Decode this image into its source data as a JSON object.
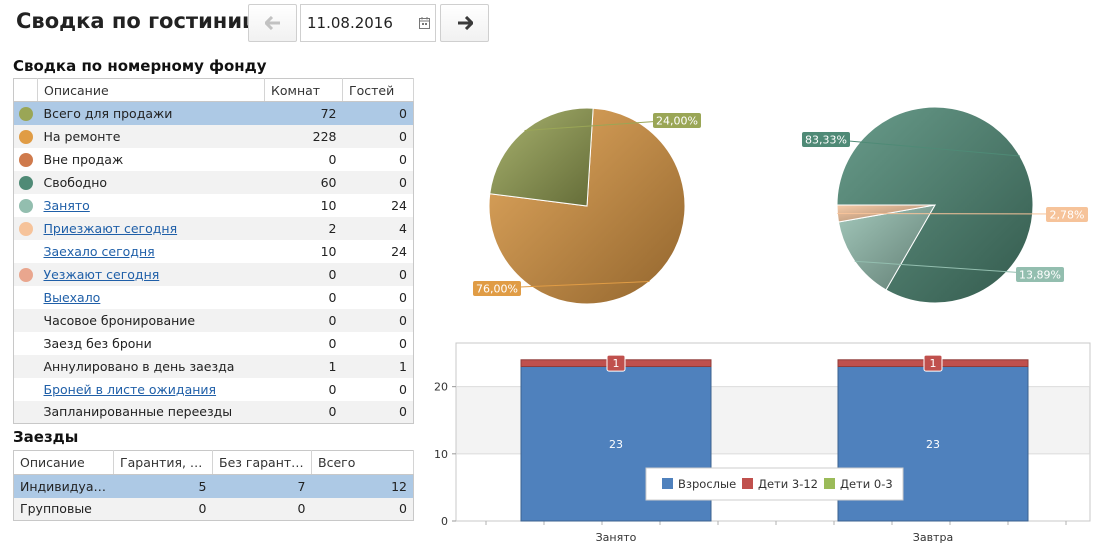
{
  "header": {
    "title": "Сводка по гостинице",
    "date_value": "11.08.2016",
    "prev_icon": "arrow-left-icon",
    "next_icon": "arrow-right-icon",
    "calendar_icon": "calendar-icon"
  },
  "rooms": {
    "title": "Сводка по номерному фонду",
    "columns": [
      "Описание",
      "Комнат",
      "Гостей"
    ],
    "rows": [
      {
        "label": "Всего для продажи",
        "rooms": "72",
        "guests": "0",
        "color": "#9aa656",
        "link": false
      },
      {
        "label": "На ремонте",
        "rooms": "228",
        "guests": "0",
        "color": "#e09c45",
        "link": false
      },
      {
        "label": "Вне продаж",
        "rooms": "0",
        "guests": "0",
        "color": "#cf7a4c",
        "link": false
      },
      {
        "label": "Свободно",
        "rooms": "60",
        "guests": "0",
        "color": "#4f8a76",
        "link": false
      },
      {
        "label": "Занято",
        "rooms": "10",
        "guests": "24",
        "color": "#93beaf",
        "link": true
      },
      {
        "label": "Приезжают сегодня",
        "rooms": "2",
        "guests": "4",
        "color": "#f6c39a",
        "link": true
      },
      {
        "label": "Заехало сегодня",
        "rooms": "10",
        "guests": "24",
        "color": "",
        "link": true
      },
      {
        "label": "Уезжают сегодня",
        "rooms": "0",
        "guests": "0",
        "color": "#e9a68e",
        "link": true
      },
      {
        "label": "Выехало",
        "rooms": "0",
        "guests": "0",
        "color": "",
        "link": true
      },
      {
        "label": "Часовое бронирование",
        "rooms": "0",
        "guests": "0",
        "color": "",
        "link": false
      },
      {
        "label": "Заезд без брони",
        "rooms": "0",
        "guests": "0",
        "color": "",
        "link": false
      },
      {
        "label": "Аннулировано в день заезда",
        "rooms": "1",
        "guests": "1",
        "color": "",
        "link": false
      },
      {
        "label": "Броней в листе ожидания",
        "rooms": "0",
        "guests": "0",
        "color": "",
        "link": true
      },
      {
        "label": "Запланированные переезды",
        "rooms": "0",
        "guests": "0",
        "color": "",
        "link": false
      }
    ]
  },
  "arrivals": {
    "title": "Заезды",
    "columns": [
      "Описание",
      "Гарантия, ко...",
      "Без гарантии...",
      "Всего"
    ],
    "rows": [
      {
        "label": "Индивидуал...",
        "guaranteed": "5",
        "unguaranteed": "7",
        "total": "12"
      },
      {
        "label": "Групповые",
        "guaranteed": "0",
        "unguaranteed": "0",
        "total": "0"
      }
    ]
  },
  "colors": {
    "orange": "#e09c45",
    "olive": "#9aa656",
    "teal": "#4f8a76",
    "light_teal": "#93beaf",
    "peach": "#f6c39a",
    "selection": "#adc9e5",
    "adults": "#4f81bd",
    "kids_3_12": "#c0504d",
    "kids_0_3": "#9bbb59"
  },
  "chart_data": [
    {
      "type": "pie",
      "slices": [
        {
          "label": "76,00%",
          "value": 76.0,
          "color": "#e09c45"
        },
        {
          "label": "24,00%",
          "value": 24.0,
          "color": "#9aa656"
        }
      ]
    },
    {
      "type": "pie",
      "slices": [
        {
          "label": "83,33%",
          "value": 83.33,
          "color": "#4f8a76"
        },
        {
          "label": "13,89%",
          "value": 13.89,
          "color": "#93beaf"
        },
        {
          "label": "2,78%",
          "value": 2.78,
          "color": "#f6c39a"
        }
      ]
    },
    {
      "type": "bar",
      "stacked": true,
      "categories": [
        "Занято",
        "Завтра"
      ],
      "series": [
        {
          "name": "Взрослые",
          "values": [
            23,
            23
          ],
          "color": "#4f81bd"
        },
        {
          "name": "Дети 3-12",
          "values": [
            1,
            1
          ],
          "color": "#c0504d"
        },
        {
          "name": "Дети 0-3",
          "values": [
            0,
            0
          ],
          "color": "#9bbb59"
        }
      ],
      "yticks": [
        0,
        10,
        20
      ],
      "ylim": [
        0,
        26.5
      ],
      "legend": "bottom-center",
      "grid": true
    }
  ]
}
